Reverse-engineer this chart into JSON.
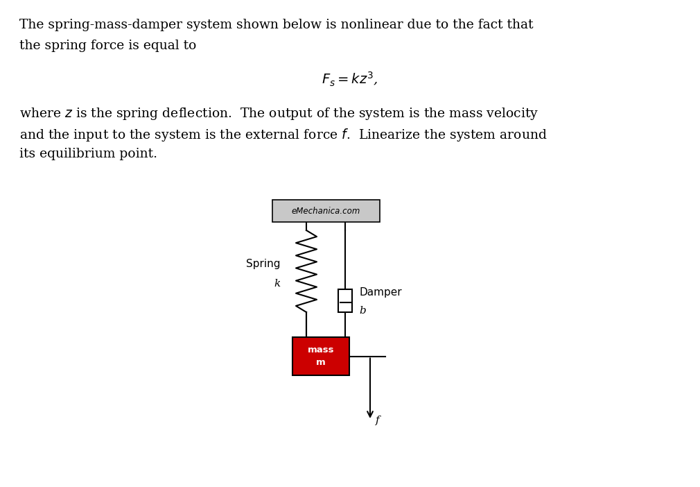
{
  "title_text1": "The spring-mass-damper system shown below is nonlinear due to the fact that",
  "title_text2": "the spring force is equal to",
  "formula": "$F_s = kz^3$,",
  "body_text1": "where $z$ is the spring deflection.  The output of the system is the mass velocity",
  "body_text2": "and the input to the system is the external force $f$.  Linearize the system around",
  "body_text3": "its equilibrium point.",
  "wall_label": "eMechanica.com",
  "spring_label": "Spring",
  "spring_k_label": "k",
  "damper_label": "Damper",
  "damper_b_label": "b",
  "mass_label": "mass\nm",
  "force_label": "f",
  "wall_color": "#c8c8c8",
  "wall_border": "#000000",
  "mass_color": "#cc0000",
  "mass_border": "#000000",
  "spring_color": "#000000",
  "damper_color": "#000000",
  "line_color": "#000000",
  "text_color": "#000000",
  "bg_color": "#ffffff",
  "fig_width": 10.1,
  "fig_height": 7.02,
  "dpi": 100
}
